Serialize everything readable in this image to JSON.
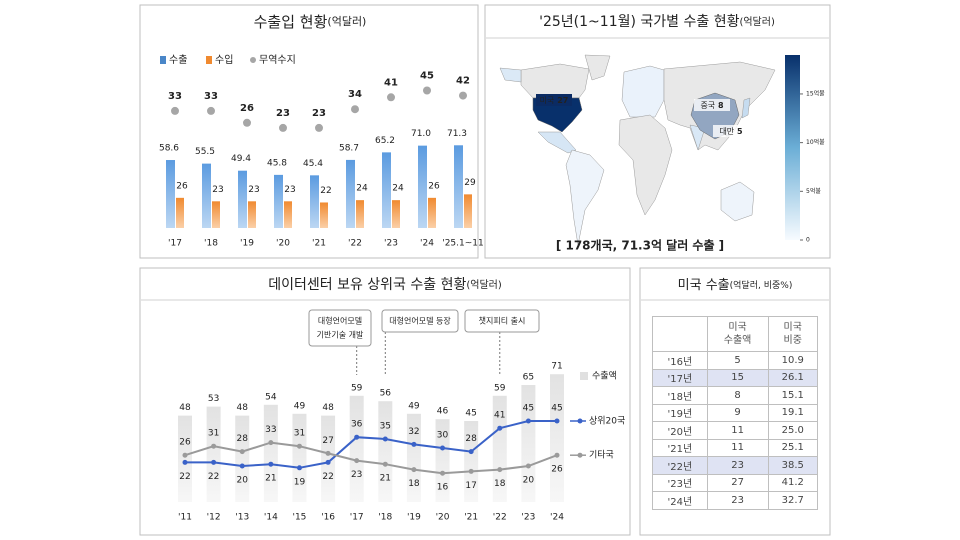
{
  "chart_data": [
    {
      "type": "bar",
      "title": "수출입 현황",
      "title_unit": "(억달러)",
      "categories": [
        "'17",
        "'18",
        "'19",
        "'20",
        "'21",
        "'22",
        "'23",
        "'24",
        "'25.1~11"
      ],
      "series": [
        {
          "name": "수출",
          "color": "#4a86c8",
          "label_color": "#2e4a7a",
          "values": [
            58.6,
            55.5,
            49.4,
            45.8,
            45.4,
            58.7,
            65.2,
            71.0,
            71.3
          ],
          "value_labels": [
            "58.6",
            "55.5",
            "49.4",
            "45.8",
            "45.4",
            "58.7",
            "65.2",
            "71.0",
            "71.3"
          ]
        },
        {
          "name": "수입",
          "color": "#f08a30",
          "label_color": "#a0522d",
          "values": [
            26,
            23,
            23,
            23,
            22,
            24,
            24,
            26,
            29
          ]
        },
        {
          "name": "무역수지",
          "color": "#a6a6a6",
          "label_color": "#222222",
          "style": "dot",
          "values": [
            33,
            33,
            26,
            23,
            23,
            34,
            41,
            45,
            42
          ]
        }
      ]
    },
    {
      "type": "map",
      "title": "'25년(1~11월) 국가별 수출 현황",
      "title_unit": "(억달러)",
      "regions": [
        {
          "name": "미국",
          "value": 27
        },
        {
          "name": "중국",
          "value": 8
        },
        {
          "name": "대만",
          "value": 5
        }
      ],
      "colorbar": {
        "lim": [
          0,
          19
        ],
        "ticks": [
          {
            "value": 15,
            "label": "15억불"
          },
          {
            "value": 10,
            "label": "10억불"
          },
          {
            "value": 5,
            "label": "5억불"
          },
          0
        ]
      },
      "footer": "[ 178개국, 71.3억 달러 수출 ]"
    },
    {
      "type": "bar-line",
      "title": "데이터센터 보유 상위국 수출 현황",
      "title_unit": "(억달러)",
      "categories": [
        "'11",
        "'12",
        "'13",
        "'14",
        "'15",
        "'16",
        "'17",
        "'18",
        "'19",
        "'20",
        "'21",
        "'22",
        "'23",
        "'24"
      ],
      "series": [
        {
          "name": "수출액",
          "type": "bar",
          "color": "#e6e6e6",
          "values": [
            48,
            53,
            48,
            54,
            49,
            48,
            59,
            56,
            49,
            46,
            45,
            59,
            65,
            71
          ]
        },
        {
          "name": "상위20국",
          "type": "line",
          "color": "#3a62c8",
          "values": [
            22,
            22,
            20,
            21,
            19,
            22,
            36,
            35,
            32,
            30,
            28,
            41,
            45,
            45
          ]
        },
        {
          "name": "기타국",
          "type": "line",
          "color": "#9a9a9a",
          "values": [
            26,
            31,
            28,
            33,
            31,
            27,
            23,
            21,
            18,
            16,
            17,
            18,
            20,
            26
          ]
        }
      ],
      "annotations": [
        {
          "lines": [
            "대형언어모델",
            "기반기술 개발"
          ]
        },
        {
          "lines": [
            "대형언어모델 등장"
          ]
        },
        {
          "lines": [
            "챗지피티 출시"
          ]
        }
      ]
    }
  ],
  "table": {
    "title": "미국 수출",
    "title_unit": "(억달러, 비중%)",
    "columns": [
      [
        "미국",
        "수출액"
      ],
      [
        "미국",
        "비중"
      ]
    ],
    "rows": [
      [
        "'16년",
        "5",
        "10.9"
      ],
      [
        "'17년",
        "15",
        "26.1"
      ],
      [
        "'18년",
        "8",
        "15.1"
      ],
      [
        "'19년",
        "9",
        "19.1"
      ],
      [
        "'20년",
        "11",
        "25.0"
      ],
      [
        "'21년",
        "11",
        "25.1"
      ],
      [
        "'22년",
        "23",
        "38.5"
      ],
      [
        "'23년",
        "27",
        "41.2"
      ],
      [
        "'24년",
        "23",
        "32.7"
      ]
    ]
  }
}
